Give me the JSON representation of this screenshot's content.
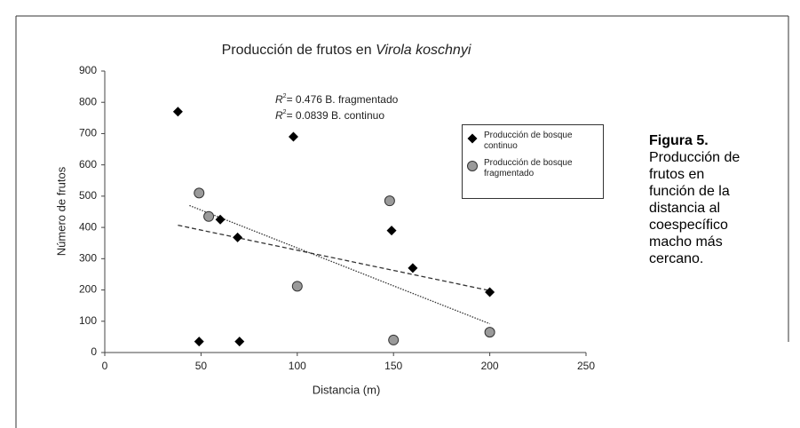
{
  "chart_data": {
    "type": "scatter",
    "title": "Producción de frutos en",
    "title_italic": "Virola koschnyi",
    "x_label": "Distancia (m)",
    "y_label": "Número de frutos",
    "xlim": [
      0,
      250
    ],
    "xticks": [
      0,
      50,
      100,
      150,
      200,
      250
    ],
    "ylim": [
      0,
      900
    ],
    "yticks": [
      0,
      100,
      200,
      300,
      400,
      500,
      600,
      700,
      800,
      900
    ],
    "grid": false,
    "legend": "upper right",
    "annotations": [
      {
        "var": "R",
        "sup": "2",
        "text": "= 0.476 B. fragmentado"
      },
      {
        "var": "R",
        "sup": "2",
        "text": "= 0.0839 B. continuo"
      }
    ],
    "series": [
      {
        "name": "Producción de bosque continuo",
        "marker": "diamond",
        "color": "#000000",
        "x": [
          38,
          98,
          60,
          69,
          49,
          70,
          149,
          160,
          200
        ],
        "values": [
          770,
          690,
          425,
          368,
          35,
          35,
          390,
          270,
          193
        ],
        "trend": {
          "x": [
            38,
            200
          ],
          "values": [
            407,
            198
          ],
          "style": "dashed"
        }
      },
      {
        "name": "Producción de bosque fragmentado",
        "marker": "circle",
        "color": "#9a9a9a",
        "x": [
          49,
          54,
          148,
          100,
          150,
          200
        ],
        "values": [
          510,
          435,
          485,
          212,
          40,
          65
        ],
        "trend": {
          "x": [
            44,
            200
          ],
          "values": [
            470,
            92
          ],
          "style": "dotted"
        }
      }
    ]
  },
  "caption": {
    "label": "Figura 5.",
    "text": "Producción de frutos en función de la distancia al coespecífico macho más cercano."
  }
}
